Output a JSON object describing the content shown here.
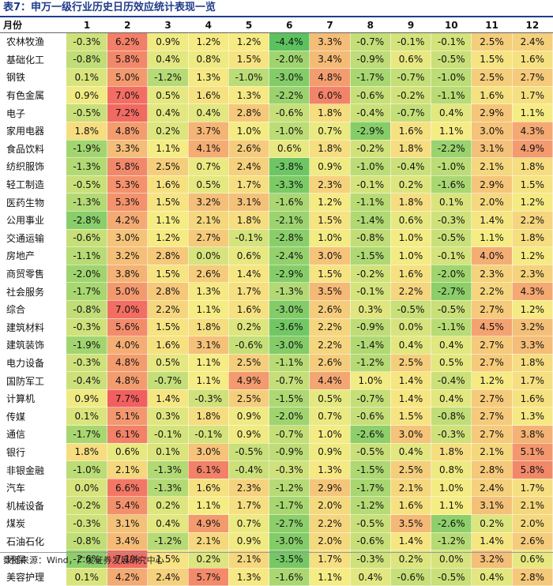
{
  "title": "表7：申万一级行业历史日历效应统计表现一览",
  "source": "数据来源：Wind，广发证券发展研究中心",
  "chart_data": {
    "type": "heatmap",
    "row_header": "月份",
    "columns": [
      "1",
      "2",
      "3",
      "4",
      "5",
      "6",
      "7",
      "8",
      "9",
      "10",
      "11",
      "12"
    ],
    "colors": {
      "low": "#5cc15f",
      "mid": "#f6ec84",
      "high": "#f15f5f"
    },
    "rows": [
      {
        "name": "农林牧渔",
        "values": [
          "-0.3%",
          "6.2%",
          "0.9%",
          "1.2%",
          "1.2%",
          "-4.4%",
          "3.3%",
          "-0.7%",
          "-0.1%",
          "-0.1%",
          "2.5%",
          "2.4%"
        ]
      },
      {
        "name": "基础化工",
        "values": [
          "-0.8%",
          "5.8%",
          "0.4%",
          "0.8%",
          "1.5%",
          "-2.0%",
          "3.4%",
          "-0.9%",
          "0.6%",
          "-0.5%",
          "1.5%",
          "1.6%"
        ]
      },
      {
        "name": "钢铁",
        "values": [
          "0.1%",
          "5.0%",
          "-1.2%",
          "1.3%",
          "-1.0%",
          "-3.0%",
          "4.8%",
          "-1.7%",
          "-0.7%",
          "-1.0%",
          "2.5%",
          "2.7%"
        ]
      },
      {
        "name": "有色金属",
        "values": [
          "0.9%",
          "7.0%",
          "0.5%",
          "1.6%",
          "1.3%",
          "-2.2%",
          "6.0%",
          "-0.6%",
          "-0.2%",
          "-1.1%",
          "1.6%",
          "1.7%"
        ]
      },
      {
        "name": "电子",
        "values": [
          "-0.5%",
          "7.2%",
          "0.4%",
          "0.4%",
          "2.8%",
          "-0.6%",
          "1.8%",
          "-0.4%",
          "-0.7%",
          "0.4%",
          "2.9%",
          "1.1%"
        ]
      },
      {
        "name": "家用电器",
        "values": [
          "1.8%",
          "4.8%",
          "0.2%",
          "3.7%",
          "1.0%",
          "-1.0%",
          "0.7%",
          "-2.9%",
          "1.6%",
          "1.1%",
          "3.0%",
          "4.3%"
        ]
      },
      {
        "name": "食品饮料",
        "values": [
          "-1.9%",
          "3.3%",
          "1.1%",
          "4.1%",
          "2.6%",
          "0.6%",
          "1.8%",
          "-0.2%",
          "1.8%",
          "-2.2%",
          "3.1%",
          "4.9%"
        ]
      },
      {
        "name": "纺织服饰",
        "values": [
          "-1.3%",
          "5.8%",
          "2.5%",
          "0.7%",
          "2.4%",
          "-3.8%",
          "0.9%",
          "-1.0%",
          "-0.4%",
          "-1.0%",
          "2.1%",
          "1.8%"
        ]
      },
      {
        "name": "轻工制造",
        "values": [
          "-0.5%",
          "5.3%",
          "1.6%",
          "0.5%",
          "1.7%",
          "-3.3%",
          "2.3%",
          "-0.1%",
          "0.2%",
          "-1.6%",
          "2.9%",
          "1.5%"
        ]
      },
      {
        "name": "医药生物",
        "values": [
          "-1.3%",
          "5.3%",
          "1.5%",
          "3.2%",
          "3.1%",
          "-1.6%",
          "1.2%",
          "-1.1%",
          "1.8%",
          "0.1%",
          "2.0%",
          "1.2%"
        ]
      },
      {
        "name": "公用事业",
        "values": [
          "-2.8%",
          "4.2%",
          "1.1%",
          "2.1%",
          "1.8%",
          "-2.1%",
          "1.5%",
          "-1.4%",
          "0.6%",
          "-0.3%",
          "1.4%",
          "2.2%"
        ]
      },
      {
        "name": "交通运输",
        "values": [
          "-0.6%",
          "3.0%",
          "1.2%",
          "2.7%",
          "-0.1%",
          "-2.8%",
          "1.0%",
          "-0.8%",
          "1.0%",
          "-0.5%",
          "1.1%",
          "1.8%"
        ]
      },
      {
        "name": "房地产",
        "values": [
          "-1.1%",
          "3.2%",
          "2.8%",
          "0.0%",
          "0.6%",
          "-2.4%",
          "3.0%",
          "-1.5%",
          "1.0%",
          "-0.1%",
          "4.0%",
          "1.2%"
        ]
      },
      {
        "name": "商贸零售",
        "values": [
          "-2.0%",
          "3.8%",
          "1.5%",
          "2.6%",
          "1.4%",
          "-2.9%",
          "1.5%",
          "-0.2%",
          "1.6%",
          "-2.0%",
          "2.3%",
          "2.3%"
        ]
      },
      {
        "name": "社会服务",
        "values": [
          "-1.7%",
          "5.0%",
          "2.8%",
          "1.3%",
          "1.7%",
          "-1.3%",
          "3.5%",
          "-0.1%",
          "2.2%",
          "-2.7%",
          "2.2%",
          "4.3%"
        ]
      },
      {
        "name": "综合",
        "values": [
          "-0.8%",
          "7.0%",
          "2.2%",
          "1.1%",
          "1.6%",
          "-3.0%",
          "2.6%",
          "0.3%",
          "-0.5%",
          "-0.5%",
          "2.7%",
          "1.2%"
        ]
      },
      {
        "name": "建筑材料",
        "values": [
          "-0.3%",
          "5.6%",
          "1.5%",
          "1.8%",
          "0.2%",
          "-3.6%",
          "2.2%",
          "-0.9%",
          "0.0%",
          "-1.1%",
          "4.5%",
          "3.2%"
        ]
      },
      {
        "name": "建筑装饰",
        "values": [
          "-1.9%",
          "4.0%",
          "1.6%",
          "3.1%",
          "-0.6%",
          "-3.0%",
          "2.2%",
          "-1.4%",
          "0.4%",
          "0.4%",
          "2.7%",
          "3.3%"
        ]
      },
      {
        "name": "电力设备",
        "values": [
          "-0.3%",
          "4.8%",
          "0.5%",
          "1.1%",
          "2.5%",
          "-1.1%",
          "2.6%",
          "-1.2%",
          "2.5%",
          "0.5%",
          "2.7%",
          "1.8%"
        ]
      },
      {
        "name": "国防军工",
        "values": [
          "-0.4%",
          "4.8%",
          "-0.7%",
          "1.1%",
          "4.9%",
          "-0.7%",
          "4.4%",
          "1.0%",
          "1.4%",
          "-0.4%",
          "1.2%",
          "1.7%"
        ]
      },
      {
        "name": "计算机",
        "values": [
          "0.9%",
          "7.7%",
          "1.4%",
          "-0.3%",
          "2.5%",
          "-1.5%",
          "0.5%",
          "-0.7%",
          "1.4%",
          "0.4%",
          "2.7%",
          "1.6%"
        ]
      },
      {
        "name": "传媒",
        "values": [
          "0.1%",
          "5.1%",
          "0.3%",
          "1.8%",
          "0.9%",
          "-2.0%",
          "0.7%",
          "-0.6%",
          "1.5%",
          "-0.8%",
          "2.7%",
          "1.3%"
        ]
      },
      {
        "name": "通信",
        "values": [
          "-1.7%",
          "6.1%",
          "-0.1%",
          "-0.1%",
          "0.9%",
          "-0.7%",
          "1.0%",
          "-2.6%",
          "3.0%",
          "-0.3%",
          "2.7%",
          "3.8%"
        ]
      },
      {
        "name": "银行",
        "values": [
          "1.8%",
          "0.6%",
          "0.1%",
          "3.0%",
          "-0.5%",
          "-0.9%",
          "0.9%",
          "-0.5%",
          "0.4%",
          "1.8%",
          "2.1%",
          "5.1%"
        ]
      },
      {
        "name": "非银金融",
        "values": [
          "-1.0%",
          "2.1%",
          "-1.3%",
          "6.1%",
          "-0.4%",
          "-0.3%",
          "1.3%",
          "-1.5%",
          "2.5%",
          "0.8%",
          "2.8%",
          "5.8%"
        ]
      },
      {
        "name": "汽车",
        "values": [
          "0.0%",
          "6.6%",
          "-1.3%",
          "1.6%",
          "2.3%",
          "-1.2%",
          "2.9%",
          "-1.7%",
          "2.1%",
          "1.0%",
          "2.4%",
          "1.7%"
        ]
      },
      {
        "name": "机械设备",
        "values": [
          "-0.2%",
          "5.4%",
          "0.2%",
          "1.1%",
          "1.7%",
          "-1.7%",
          "2.0%",
          "-1.2%",
          "1.6%",
          "1.1%",
          "3.1%",
          "2.1%"
        ]
      },
      {
        "name": "煤炭",
        "values": [
          "-0.3%",
          "3.1%",
          "0.4%",
          "4.9%",
          "0.7%",
          "-2.7%",
          "2.2%",
          "-0.5%",
          "3.5%",
          "-2.6%",
          "0.2%",
          "2.0%"
        ]
      },
      {
        "name": "石油石化",
        "values": [
          "-0.8%",
          "3.4%",
          "-1.2%",
          "2.1%",
          "0.9%",
          "-3.0%",
          "2.0%",
          "-0.6%",
          "1.4%",
          "-1.2%",
          "1.4%",
          "2.6%"
        ]
      },
      {
        "name": "环保",
        "values": [
          "-2.6%",
          "7.1%",
          "1.5%",
          "0.2%",
          "2.1%",
          "-3.5%",
          "1.7%",
          "-0.3%",
          "0.2%",
          "0.0%",
          "3.2%",
          "0.6%"
        ]
      },
      {
        "name": "美容护理",
        "values": [
          "0.1%",
          "4.2%",
          "2.4%",
          "5.7%",
          "1.3%",
          "-1.6%",
          "1.1%",
          "0.4%",
          "-0.6%",
          "-0.5%",
          "0.4%",
          "2.8%"
        ]
      }
    ]
  }
}
